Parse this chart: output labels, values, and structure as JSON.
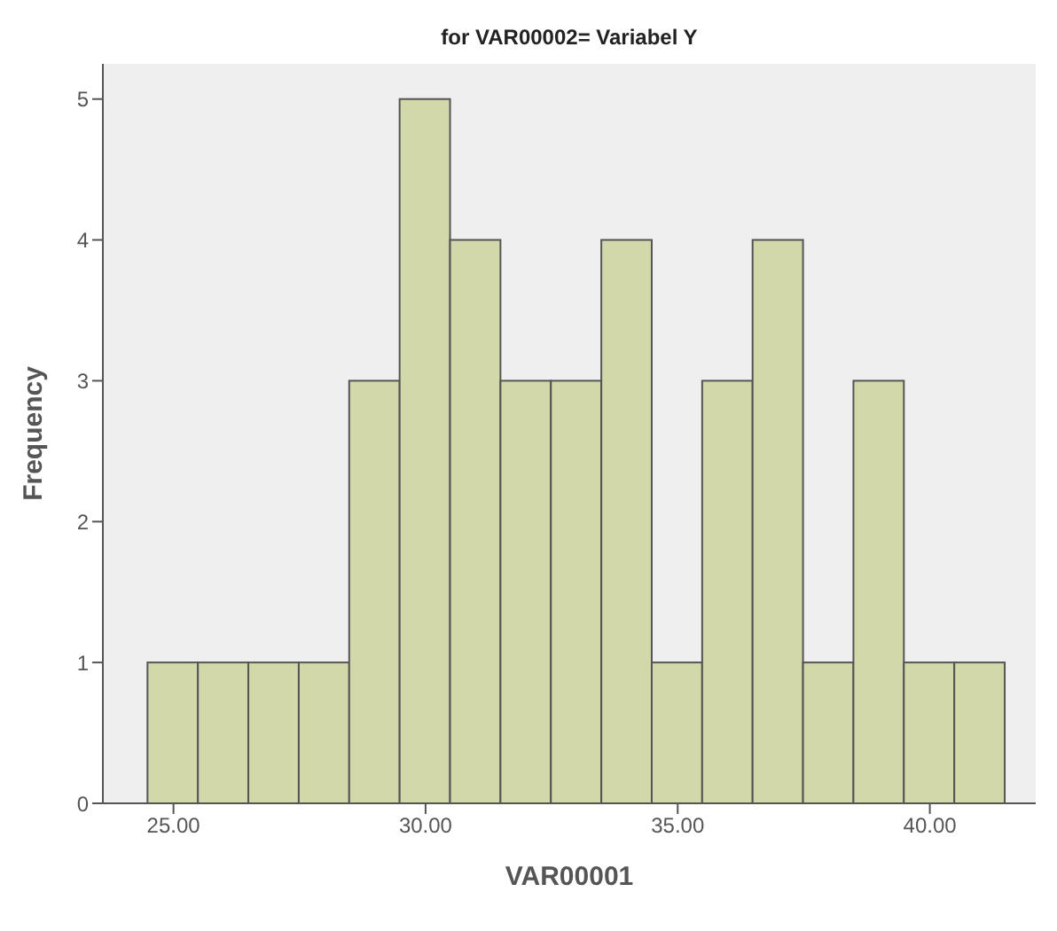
{
  "chart_data": {
    "type": "histogram",
    "title": "for VAR00002= Variabel Y",
    "xlabel": "VAR00001",
    "ylabel": "Frequency",
    "bins": [
      24.5,
      25.5,
      26.5,
      27.5,
      28.5,
      29.5,
      30.5,
      31.5,
      32.5,
      33.5,
      34.5,
      35.5,
      36.5,
      37.5,
      38.5,
      39.5,
      40.5,
      41.5
    ],
    "values": [
      1,
      1,
      1,
      1,
      3,
      5,
      4,
      3,
      3,
      4,
      1,
      3,
      4,
      1,
      3,
      1,
      1
    ],
    "color": "#d3d8a8",
    "xlim": [
      23.6,
      42.1
    ],
    "xticks": [
      {
        "value": 25,
        "label": "25.00"
      },
      {
        "value": 30,
        "label": "30.00"
      },
      {
        "value": 35,
        "label": "35.00"
      },
      {
        "value": 40,
        "label": "40.00"
      }
    ],
    "ylim": [
      0,
      5.25
    ],
    "yticks": [
      0,
      1,
      2,
      3,
      4,
      5
    ],
    "grid": false
  }
}
